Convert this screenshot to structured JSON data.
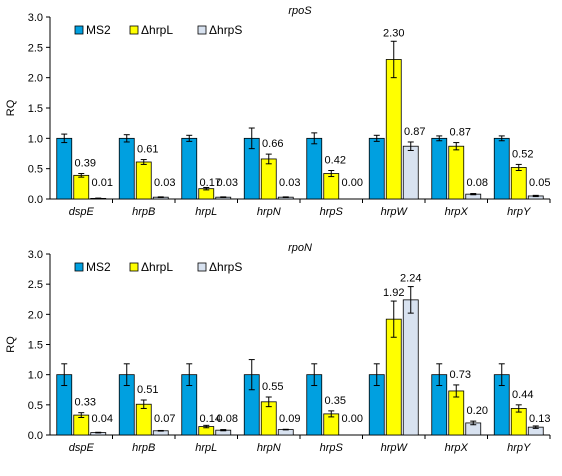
{
  "chart_data": [
    {
      "type": "bar",
      "title": "rpoS",
      "xlabel": "",
      "ylabel": "RQ",
      "ylim": [
        0,
        3.0
      ],
      "yticks": [
        "0.0",
        "0.5",
        "1.0",
        "1.5",
        "2.0",
        "2.5",
        "3.0"
      ],
      "grid": false,
      "legend_position": "top-left",
      "categories": [
        "dspE",
        "hrpB",
        "hrpL",
        "hrpN",
        "hrpS",
        "hrpW",
        "hrpX",
        "hrpY"
      ],
      "series": [
        {
          "name": "MS2",
          "color": "#00A0E0",
          "values": [
            1.0,
            1.0,
            1.0,
            1.0,
            1.0,
            1.0,
            1.0,
            1.0
          ],
          "errors": [
            0.07,
            0.06,
            0.05,
            0.17,
            0.09,
            0.05,
            0.04,
            0.04
          ],
          "labels": [
            "",
            "",
            "",
            "",
            "",
            "",
            "",
            ""
          ]
        },
        {
          "name": "ΔhrpL",
          "color": "#FFFF00",
          "values": [
            0.39,
            0.61,
            0.17,
            0.66,
            0.42,
            2.3,
            0.87,
            0.52
          ],
          "errors": [
            0.03,
            0.04,
            0.02,
            0.08,
            0.05,
            0.3,
            0.06,
            0.05
          ],
          "labels": [
            "0.39",
            "0.61",
            "0.17",
            "0.66",
            "0.42",
            "2.30",
            "0.87",
            "0.52"
          ]
        },
        {
          "name": "ΔhrpS",
          "color": "#D8E2F0",
          "values": [
            0.01,
            0.03,
            0.03,
            0.03,
            0.0,
            0.87,
            0.08,
            0.05
          ],
          "errors": [
            0.005,
            0.005,
            0.005,
            0.005,
            0.0,
            0.07,
            0.01,
            0.01
          ],
          "labels": [
            "0.01",
            "0.03",
            "0.03",
            "0.03",
            "0.00",
            "0.87",
            "0.08",
            "0.05"
          ]
        }
      ]
    },
    {
      "type": "bar",
      "title": "rpoN",
      "xlabel": "",
      "ylabel": "RQ",
      "ylim": [
        0,
        3.0
      ],
      "yticks": [
        "0.0",
        "0.5",
        "1.0",
        "1.5",
        "2.0",
        "2.5",
        "3.0"
      ],
      "grid": false,
      "legend_position": "top-left",
      "categories": [
        "dspE",
        "hrpB",
        "hrpL",
        "hrpN",
        "hrpS",
        "hrpW",
        "hrpX",
        "hrpY"
      ],
      "series": [
        {
          "name": "MS2",
          "color": "#00A0E0",
          "values": [
            1.0,
            1.0,
            1.0,
            1.0,
            1.0,
            1.0,
            1.0,
            1.0
          ],
          "errors": [
            0.18,
            0.18,
            0.18,
            0.25,
            0.18,
            0.18,
            0.18,
            0.18
          ],
          "labels": [
            "",
            "",
            "",
            "",
            "",
            "",
            "",
            ""
          ]
        },
        {
          "name": "ΔhrpL",
          "color": "#FFFF00",
          "values": [
            0.33,
            0.51,
            0.14,
            0.55,
            0.35,
            1.92,
            0.73,
            0.44
          ],
          "errors": [
            0.04,
            0.07,
            0.02,
            0.08,
            0.05,
            0.3,
            0.1,
            0.06
          ],
          "labels": [
            "0.33",
            "0.51",
            "0.14",
            "0.55",
            "0.35",
            "1.92",
            "0.73",
            "0.44"
          ]
        },
        {
          "name": "ΔhrpS",
          "color": "#D8E2F0",
          "values": [
            0.04,
            0.07,
            0.08,
            0.09,
            0.0,
            2.24,
            0.2,
            0.13
          ],
          "errors": [
            0.005,
            0.005,
            0.01,
            0.005,
            0.0,
            0.22,
            0.03,
            0.02
          ],
          "labels": [
            "0.04",
            "0.07",
            "0.08",
            "0.09",
            "0.00",
            "2.24",
            "0.20",
            "0.13"
          ]
        }
      ]
    }
  ]
}
